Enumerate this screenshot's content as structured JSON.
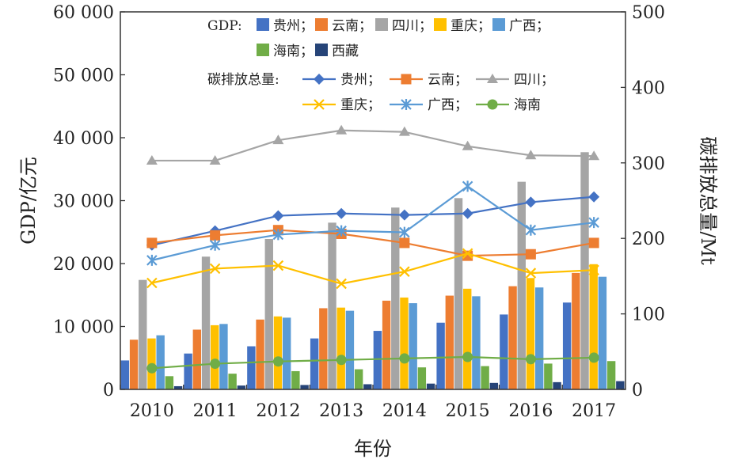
{
  "chart_data": {
    "type": "bar",
    "categories": [
      "2010",
      "2011",
      "2012",
      "2013",
      "2014",
      "2015",
      "2016",
      "2017"
    ],
    "xlabel": "年份",
    "ylabel": "GDP/亿元",
    "y2label": "碳排放总量/Mt",
    "ylim": [
      0,
      60000
    ],
    "y2lim": [
      0,
      500
    ],
    "yticks": [
      "0",
      "10 000",
      "20 000",
      "30 000",
      "40 000",
      "50 000",
      "60 000"
    ],
    "y2ticks": [
      "0",
      "100",
      "200",
      "300",
      "400",
      "500"
    ],
    "grid": false,
    "legend_gdp_title": "GDP:",
    "legend_carbon_title": "碳排放总量:",
    "bar_series": [
      {
        "name": "贵州",
        "color": "#4472C4",
        "values": [
          4600,
          5700,
          6850,
          8100,
          9300,
          10600,
          11900,
          13800
        ]
      },
      {
        "name": "云南",
        "color": "#ED7D31",
        "values": [
          7900,
          9500,
          11100,
          12900,
          14100,
          14900,
          16400,
          18500
        ]
      },
      {
        "name": "四川",
        "color": "#A5A5A5",
        "values": [
          17400,
          21100,
          23900,
          26500,
          28900,
          30400,
          33000,
          37700
        ]
      },
      {
        "name": "重庆",
        "color": "#FFC000",
        "values": [
          8100,
          10200,
          11600,
          13000,
          14600,
          16000,
          17700,
          19900
        ]
      },
      {
        "name": "广西",
        "color": "#5B9BD5",
        "values": [
          8600,
          10400,
          11400,
          12500,
          13700,
          14800,
          16200,
          17900
        ]
      },
      {
        "name": "海南",
        "color": "#70AD47",
        "values": [
          2100,
          2500,
          2900,
          3200,
          3500,
          3700,
          4100,
          4500
        ]
      },
      {
        "name": "西藏",
        "color": "#264478",
        "values": [
          510,
          610,
          700,
          820,
          920,
          1030,
          1150,
          1310
        ]
      }
    ],
    "line_series": [
      {
        "name": "贵州",
        "color": "#4472C4",
        "marker": "diamond",
        "values": [
          191,
          210,
          230,
          233,
          231,
          233,
          248,
          255
        ]
      },
      {
        "name": "云南",
        "color": "#ED7D31",
        "marker": "square",
        "values": [
          194,
          204,
          211,
          206,
          194,
          177,
          179,
          194
        ]
      },
      {
        "name": "四川",
        "color": "#A5A5A5",
        "marker": "triangle",
        "values": [
          303,
          303,
          330,
          343,
          341,
          322,
          310,
          309
        ]
      },
      {
        "name": "重庆",
        "color": "#FFC000",
        "marker": "x",
        "values": [
          141,
          160,
          164,
          140,
          156,
          180,
          154,
          158
        ]
      },
      {
        "name": "广西",
        "color": "#5B9BD5",
        "marker": "star",
        "values": [
          171,
          191,
          205,
          210,
          208,
          269,
          211,
          221
        ]
      },
      {
        "name": "海南",
        "color": "#70AD47",
        "marker": "circle",
        "values": [
          28,
          34,
          37,
          39,
          41,
          43,
          40,
          42
        ]
      }
    ]
  }
}
